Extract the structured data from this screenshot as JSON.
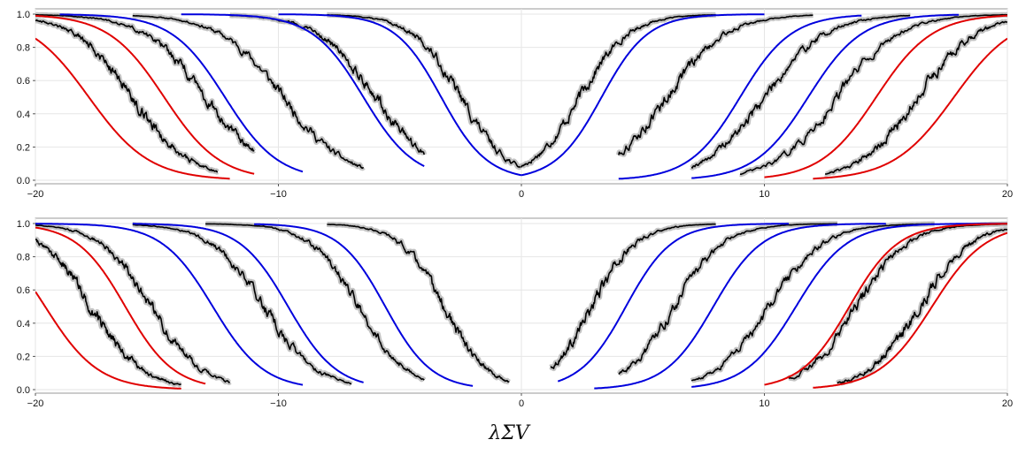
{
  "chart_data": [
    {
      "panel": "top",
      "type": "line",
      "xlim": [
        -20,
        20
      ],
      "ylim": [
        0,
        1
      ],
      "xticks": [
        -20,
        -10,
        0,
        10,
        20
      ],
      "yticks": [
        0.0,
        0.2,
        0.4,
        0.6,
        0.8,
        1.0
      ],
      "grid": true,
      "series": [
        {
          "color": "#e00000",
          "kind": "exact",
          "side": "left",
          "midpoint": -17.8,
          "width": 1.25,
          "x_range": [
            -20,
            -12
          ]
        },
        {
          "color": "#e00000",
          "kind": "exact",
          "side": "left",
          "midpoint": -14.7,
          "width": 1.15,
          "x_range": [
            -20,
            -11
          ]
        },
        {
          "color": "#000000",
          "kind": "empirical",
          "side": "left",
          "midpoint": -16.0,
          "width": 1.2,
          "x_range": [
            -20,
            -12.5
          ]
        },
        {
          "color": "#000000",
          "kind": "empirical",
          "side": "left",
          "midpoint": -13.0,
          "width": 1.25,
          "x_range": [
            -20,
            -11
          ]
        },
        {
          "color": "#000000",
          "kind": "empirical",
          "side": "left",
          "midpoint": -9.8,
          "width": 1.3,
          "x_range": [
            -16,
            -6.5
          ]
        },
        {
          "color": "#000000",
          "kind": "empirical",
          "side": "left",
          "midpoint": -6.0,
          "width": 1.2,
          "x_range": [
            -12,
            -4
          ]
        },
        {
          "color": "#000000",
          "kind": "empirical",
          "side": "left",
          "midpoint": -2.5,
          "width": 1.0,
          "x_range": [
            -8,
            0
          ]
        },
        {
          "color": "#0000dd",
          "kind": "exact",
          "side": "left",
          "midpoint": -12.2,
          "width": 1.1,
          "x_range": [
            -19,
            -9
          ]
        },
        {
          "color": "#0000dd",
          "kind": "exact",
          "side": "left",
          "midpoint": -6.5,
          "width": 1.05,
          "x_range": [
            -14,
            -4
          ]
        },
        {
          "color": "#0000dd",
          "kind": "exact",
          "side": "left",
          "midpoint": -3.3,
          "width": 0.95,
          "x_range": [
            -10,
            0
          ]
        },
        {
          "color": "#000000",
          "kind": "empirical",
          "side": "right",
          "midpoint": 2.4,
          "width": 1.0,
          "x_range": [
            0,
            8
          ]
        },
        {
          "color": "#000000",
          "kind": "empirical",
          "side": "right",
          "midpoint": 6.0,
          "width": 1.2,
          "x_range": [
            4,
            12
          ]
        },
        {
          "color": "#000000",
          "kind": "empirical",
          "side": "right",
          "midpoint": 10.0,
          "width": 1.25,
          "x_range": [
            7,
            16
          ]
        },
        {
          "color": "#000000",
          "kind": "empirical",
          "side": "right",
          "midpoint": 13.0,
          "width": 1.25,
          "x_range": [
            9,
            20
          ]
        },
        {
          "color": "#000000",
          "kind": "empirical",
          "side": "right",
          "midpoint": 16.3,
          "width": 1.2,
          "x_range": [
            12.5,
            20
          ]
        },
        {
          "color": "#0000dd",
          "kind": "exact",
          "side": "right",
          "midpoint": 3.3,
          "width": 0.95,
          "x_range": [
            0,
            10
          ]
        },
        {
          "color": "#0000dd",
          "kind": "exact",
          "side": "right",
          "midpoint": 9.0,
          "width": 1.05,
          "x_range": [
            4,
            14
          ]
        },
        {
          "color": "#0000dd",
          "kind": "exact",
          "side": "right",
          "midpoint": 11.8,
          "width": 1.1,
          "x_range": [
            7,
            18
          ]
        },
        {
          "color": "#e00000",
          "kind": "exact",
          "side": "right",
          "midpoint": 14.6,
          "width": 1.15,
          "x_range": [
            10,
            20
          ]
        },
        {
          "color": "#e00000",
          "kind": "exact",
          "side": "right",
          "midpoint": 17.8,
          "width": 1.25,
          "x_range": [
            12,
            20
          ]
        }
      ]
    },
    {
      "panel": "bottom",
      "type": "line",
      "xlim": [
        -20,
        20
      ],
      "ylim": [
        0,
        1
      ],
      "xticks": [
        -20,
        -10,
        0,
        10,
        20
      ],
      "yticks": [
        0.0,
        0.2,
        0.4,
        0.6,
        0.8,
        1.0
      ],
      "grid": true,
      "series": [
        {
          "color": "#e00000",
          "kind": "exact",
          "side": "left",
          "midpoint": -19.6,
          "width": 1.1,
          "x_range": [
            -20,
            -14
          ]
        },
        {
          "color": "#e00000",
          "kind": "exact",
          "side": "left",
          "midpoint": -16.3,
          "width": 1.0,
          "x_range": [
            -20,
            -13
          ]
        },
        {
          "color": "#000000",
          "kind": "empirical",
          "side": "left",
          "midpoint": -17.7,
          "width": 1.05,
          "x_range": [
            -20,
            -14
          ]
        },
        {
          "color": "#000000",
          "kind": "empirical",
          "side": "left",
          "midpoint": -15.2,
          "width": 1.05,
          "x_range": [
            -20,
            -12
          ]
        },
        {
          "color": "#000000",
          "kind": "empirical",
          "side": "left",
          "midpoint": -10.6,
          "width": 1.1,
          "x_range": [
            -16,
            -7
          ]
        },
        {
          "color": "#000000",
          "kind": "empirical",
          "side": "left",
          "midpoint": -6.7,
          "width": 1.0,
          "x_range": [
            -13,
            -4
          ]
        },
        {
          "color": "#000000",
          "kind": "empirical",
          "side": "left",
          "midpoint": -3.2,
          "width": 0.9,
          "x_range": [
            -8,
            -0.5
          ]
        },
        {
          "color": "#0000dd",
          "kind": "exact",
          "side": "left",
          "midpoint": -12.7,
          "width": 1.05,
          "x_range": [
            -20,
            -9
          ]
        },
        {
          "color": "#0000dd",
          "kind": "exact",
          "side": "left",
          "midpoint": -9.6,
          "width": 1.0,
          "x_range": [
            -16,
            -6.5
          ]
        },
        {
          "color": "#0000dd",
          "kind": "exact",
          "side": "left",
          "midpoint": -5.6,
          "width": 0.95,
          "x_range": [
            -11,
            -2
          ]
        },
        {
          "color": "#000000",
          "kind": "empirical",
          "side": "right",
          "midpoint": 2.9,
          "width": 0.9,
          "x_range": [
            1.2,
            8
          ]
        },
        {
          "color": "#000000",
          "kind": "empirical",
          "side": "right",
          "midpoint": 6.3,
          "width": 1.0,
          "x_range": [
            4,
            13
          ]
        },
        {
          "color": "#000000",
          "kind": "empirical",
          "side": "right",
          "midpoint": 10.2,
          "width": 1.1,
          "x_range": [
            7,
            17
          ]
        },
        {
          "color": "#000000",
          "kind": "empirical",
          "side": "right",
          "midpoint": 13.8,
          "width": 1.05,
          "x_range": [
            11,
            20
          ]
        },
        {
          "color": "#000000",
          "kind": "empirical",
          "side": "right",
          "midpoint": 16.4,
          "width": 1.05,
          "x_range": [
            13,
            20
          ]
        },
        {
          "color": "#0000dd",
          "kind": "exact",
          "side": "right",
          "midpoint": 4.3,
          "width": 0.95,
          "x_range": [
            1.5,
            11
          ]
        },
        {
          "color": "#0000dd",
          "kind": "exact",
          "side": "right",
          "midpoint": 7.9,
          "width": 1.0,
          "x_range": [
            3,
            15
          ]
        },
        {
          "color": "#0000dd",
          "kind": "exact",
          "side": "right",
          "midpoint": 11.3,
          "width": 1.05,
          "x_range": [
            7,
            20
          ]
        },
        {
          "color": "#e00000",
          "kind": "exact",
          "side": "right",
          "midpoint": 13.5,
          "width": 1.0,
          "x_range": [
            10,
            20
          ]
        },
        {
          "color": "#e00000",
          "kind": "exact",
          "side": "right",
          "midpoint": 16.9,
          "width": 1.1,
          "x_range": [
            12,
            20
          ]
        }
      ]
    }
  ],
  "xlabel": "λΣV",
  "colors": {
    "grid": "#e6e6e6",
    "axis": "#9a9a9a",
    "band": "#b8b8b8"
  }
}
